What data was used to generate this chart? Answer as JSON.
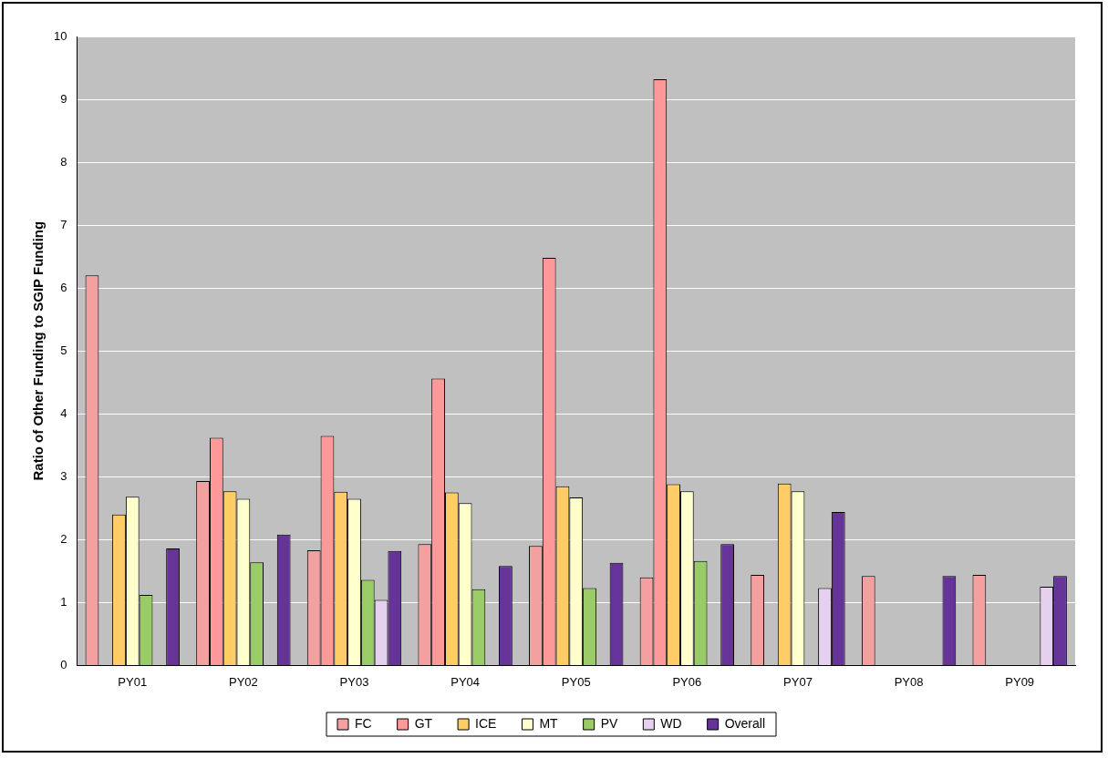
{
  "chart_data": {
    "type": "bar",
    "ylabel": "Ratio of Other Funding to SGIP Funding",
    "categories": [
      "PY01",
      "PY02",
      "PY03",
      "PY04",
      "PY05",
      "PY06",
      "PY07",
      "PY08",
      "PY09"
    ],
    "series": [
      {
        "name": "FC",
        "color": "#f4a0a0",
        "values": [
          6.2,
          2.93,
          1.83,
          1.93,
          1.9,
          1.4,
          1.44,
          1.42,
          1.44
        ]
      },
      {
        "name": "GT",
        "color": "#ff9999",
        "values": [
          null,
          3.62,
          3.65,
          4.56,
          6.48,
          9.32,
          null,
          null,
          null
        ]
      },
      {
        "name": "ICE",
        "color": "#ffcc66",
        "values": [
          2.4,
          2.77,
          2.76,
          2.75,
          2.85,
          2.88,
          2.89,
          null,
          null
        ]
      },
      {
        "name": "MT",
        "color": "#ffffcc",
        "values": [
          2.68,
          2.65,
          2.65,
          2.58,
          2.67,
          2.77,
          2.77,
          null,
          null
        ]
      },
      {
        "name": "PV",
        "color": "#99cc66",
        "values": [
          1.12,
          1.64,
          1.36,
          1.21,
          1.23,
          1.66,
          null,
          null,
          null
        ]
      },
      {
        "name": "WD",
        "color": "#e6d0f0",
        "values": [
          null,
          null,
          1.04,
          null,
          null,
          null,
          1.23,
          null,
          1.25
        ]
      },
      {
        "name": "Overall",
        "color": "#663399",
        "values": [
          1.86,
          2.08,
          1.82,
          1.58,
          1.63,
          1.93,
          2.44,
          1.42,
          1.42
        ]
      }
    ],
    "ylim": [
      0,
      10
    ],
    "yticks": [
      0,
      1,
      2,
      3,
      4,
      5,
      6,
      7,
      8,
      9,
      10
    ],
    "grid": "y",
    "legend": "bottom"
  }
}
